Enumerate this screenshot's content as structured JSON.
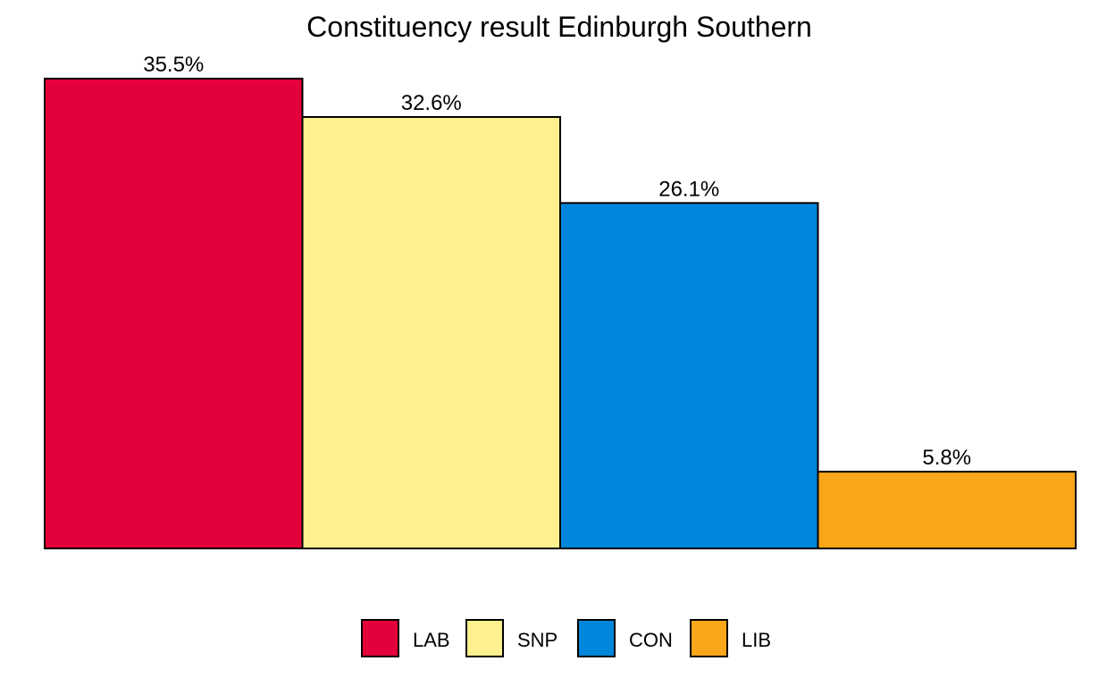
{
  "chart_data": {
    "type": "bar",
    "title": "Constituency result Edinburgh Southern",
    "xlabel": "",
    "ylabel": "",
    "categories": [
      "LAB",
      "SNP",
      "CON",
      "LIB"
    ],
    "values": [
      35.5,
      32.6,
      26.1,
      5.8
    ],
    "value_labels": [
      "35.5%",
      "32.6%",
      "26.1%",
      "5.8%"
    ],
    "colors": [
      "#E4003B",
      "#FDF08F",
      "#0087DC",
      "#FAA61A"
    ],
    "ylim": [
      0,
      35.5
    ],
    "grid": false,
    "axes_visible": false,
    "legend": {
      "position": "bottom",
      "entries": [
        "LAB",
        "SNP",
        "CON",
        "LIB"
      ]
    }
  }
}
